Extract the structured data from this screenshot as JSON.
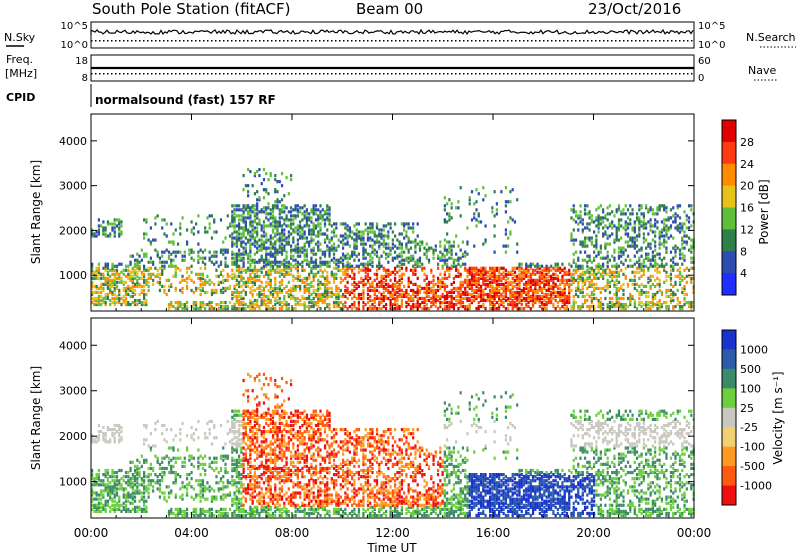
{
  "header": {
    "station": "South Pole Station (fitACF)",
    "beam": "Beam 00",
    "date": "23/Oct/2016"
  },
  "status_panels": {
    "nsky_label": "N.Sky",
    "nsearch_label": "N.Search",
    "noise_ticks_top": "10^5",
    "noise_ticks_bottom": "10^0",
    "freq_label_line1": "Freq.",
    "freq_label_line2": "[MHz]",
    "freq_ticks": [
      "18",
      "8"
    ],
    "nave_label": "Nave",
    "nave_ticks": [
      "60",
      "0"
    ],
    "cpid_label": "CPID",
    "cpid_value": "normalsound (fast) 157 RF"
  },
  "chart_data": [
    {
      "type": "heatmap",
      "title": "Power",
      "ylabel": "Slant Range [km]",
      "xlabel": "Time UT",
      "x_ticks": [
        "00:00",
        "04:00",
        "08:00",
        "12:00",
        "16:00",
        "20:00",
        "00:00"
      ],
      "y_ticks": [
        1000,
        2000,
        3000,
        4000
      ],
      "ylim": [
        200,
        4600
      ],
      "colorbar": {
        "label": "Power [dB]",
        "ticks": [
          "4",
          "8",
          "12",
          "16",
          "20",
          "24",
          "28"
        ],
        "colors": [
          "#1f2fff",
          "#2d4bb0",
          "#2f7f4a",
          "#5fbf3a",
          "#e8c21a",
          "#ff8c00",
          "#ff3a10",
          "#e00000"
        ]
      }
    },
    {
      "type": "heatmap",
      "title": "Velocity",
      "ylabel": "Slant Range [km]",
      "xlabel": "Time UT",
      "x_ticks": [
        "00:00",
        "04:00",
        "08:00",
        "12:00",
        "16:00",
        "20:00",
        "00:00"
      ],
      "y_ticks": [
        1000,
        2000,
        3000,
        4000
      ],
      "ylim": [
        200,
        4600
      ],
      "colorbar": {
        "label": "Velocity [m s⁻¹]",
        "ticks": [
          "1000",
          "500",
          "100",
          "25",
          "-25",
          "-100",
          "-500",
          "-1000"
        ],
        "colors": [
          "#1a33cc",
          "#2a5caa",
          "#3d8a6b",
          "#6ccf3d",
          "#c8c8c0",
          "#f0d070",
          "#ff9a20",
          "#ff5a10",
          "#ee1010"
        ]
      }
    }
  ]
}
